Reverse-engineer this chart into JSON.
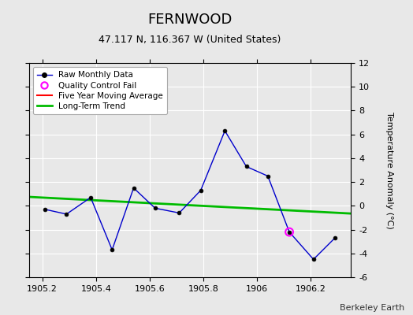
{
  "title": "FERNWOOD",
  "subtitle": "47.117 N, 116.367 W (United States)",
  "attribution": "Berkeley Earth",
  "ylabel": "Temperature Anomaly (°C)",
  "xlim": [
    1905.15,
    1906.35
  ],
  "ylim": [
    -6,
    12
  ],
  "yticks": [
    -6,
    -4,
    -2,
    0,
    2,
    4,
    6,
    8,
    10,
    12
  ],
  "xticks": [
    1905.2,
    1905.4,
    1905.6,
    1905.8,
    1906.0,
    1906.2
  ],
  "xtick_labels": [
    "1905.2",
    "1905.4",
    "1905.6",
    "1905.8",
    "1906",
    "1906.2"
  ],
  "background_color": "#e8e8e8",
  "raw_x": [
    1905.21,
    1905.29,
    1905.38,
    1905.46,
    1905.54,
    1905.62,
    1905.71,
    1905.79,
    1905.88,
    1905.96,
    1906.04,
    1906.12,
    1906.21,
    1906.29
  ],
  "raw_y": [
    -0.3,
    -0.7,
    0.7,
    -3.7,
    1.5,
    -0.2,
    -0.6,
    1.3,
    6.3,
    3.3,
    2.5,
    -2.2,
    -4.5,
    -2.7
  ],
  "qc_fail_x": [
    1906.12
  ],
  "qc_fail_y": [
    -2.2
  ],
  "trend_x": [
    1905.15,
    1906.35
  ],
  "trend_y": [
    0.75,
    -0.65
  ],
  "raw_line_color": "#0000cc",
  "raw_marker_color": "#000000",
  "qc_marker_color": "#ff00ff",
  "trend_color": "#00bb00",
  "moving_avg_color": "#ff0000",
  "grid_color": "#d0d0d0",
  "title_fontsize": 13,
  "subtitle_fontsize": 9,
  "label_fontsize": 8,
  "tick_fontsize": 8,
  "attribution_fontsize": 8
}
